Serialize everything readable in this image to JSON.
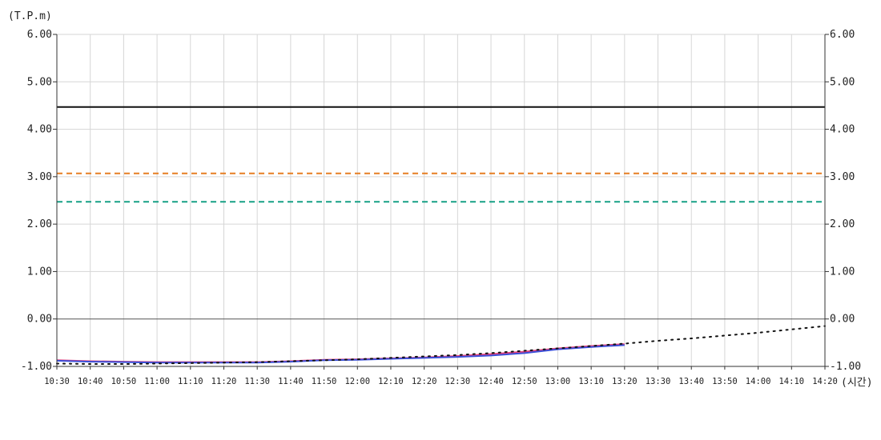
{
  "chart_data": {
    "type": "line",
    "ylabel": "(T.P.m)",
    "xlabel": "(시간)",
    "ylim": [
      -1.0,
      6.0
    ],
    "y_ticks": [
      "6.00",
      "5.00",
      "4.00",
      "3.00",
      "2.00",
      "1.00",
      "0.00",
      "-1.00"
    ],
    "y_tick_values": [
      6,
      5,
      4,
      3,
      2,
      1,
      0,
      -1
    ],
    "x_ticks": [
      "10:30",
      "10:40",
      "10:50",
      "11:00",
      "11:10",
      "11:20",
      "11:30",
      "11:40",
      "11:50",
      "12:00",
      "12:10",
      "12:20",
      "12:30",
      "12:40",
      "12:50",
      "13:00",
      "13:10",
      "13:20",
      "13:30",
      "13:40",
      "13:50",
      "14:00",
      "14:10",
      "14:20"
    ],
    "grid": true,
    "reference_lines": [
      {
        "y": 4.47,
        "color": "#111111",
        "style": "solid"
      },
      {
        "y": 3.07,
        "color": "#e67e22",
        "style": "dashed"
      },
      {
        "y": 2.47,
        "color": "#16a085",
        "style": "dashed"
      }
    ],
    "series": [
      {
        "color": "#e8407a",
        "style": "solid",
        "x": [
          "10:30",
          "10:40",
          "10:50",
          "11:00",
          "11:10",
          "11:20",
          "11:30",
          "11:40",
          "11:50",
          "12:00",
          "12:10",
          "12:20",
          "12:30",
          "12:40",
          "12:50",
          "13:00",
          "13:10",
          "13:20"
        ],
        "y": [
          -0.87,
          -0.89,
          -0.9,
          -0.91,
          -0.91,
          -0.91,
          -0.91,
          -0.89,
          -0.86,
          -0.85,
          -0.83,
          -0.81,
          -0.78,
          -0.74,
          -0.69,
          -0.62,
          -0.57,
          -0.53
        ]
      },
      {
        "color": "#3b4fd8",
        "style": "solid",
        "x": [
          "10:30",
          "10:40",
          "10:50",
          "11:00",
          "11:10",
          "11:20",
          "11:30",
          "11:40",
          "11:50",
          "12:00",
          "12:10",
          "12:20",
          "12:30",
          "12:40",
          "12:50",
          "13:00",
          "13:10",
          "13:20"
        ],
        "y": [
          -0.88,
          -0.9,
          -0.91,
          -0.92,
          -0.92,
          -0.92,
          -0.92,
          -0.9,
          -0.87,
          -0.86,
          -0.84,
          -0.82,
          -0.8,
          -0.77,
          -0.72,
          -0.64,
          -0.59,
          -0.55
        ]
      },
      {
        "color": "#111111",
        "style": "dotted",
        "x": [
          "10:30",
          "10:40",
          "10:50",
          "11:00",
          "11:10",
          "11:20",
          "11:30",
          "11:40",
          "11:50",
          "12:00",
          "12:10",
          "12:20",
          "12:30",
          "12:40",
          "12:50",
          "13:00",
          "13:10",
          "13:20",
          "13:30",
          "13:40",
          "13:50",
          "14:00",
          "14:10",
          "14:20"
        ],
        "y": [
          -0.94,
          -0.95,
          -0.95,
          -0.94,
          -0.93,
          -0.92,
          -0.91,
          -0.89,
          -0.87,
          -0.85,
          -0.82,
          -0.79,
          -0.76,
          -0.72,
          -0.67,
          -0.62,
          -0.57,
          -0.52,
          -0.46,
          -0.41,
          -0.35,
          -0.29,
          -0.22,
          -0.15
        ]
      }
    ]
  }
}
